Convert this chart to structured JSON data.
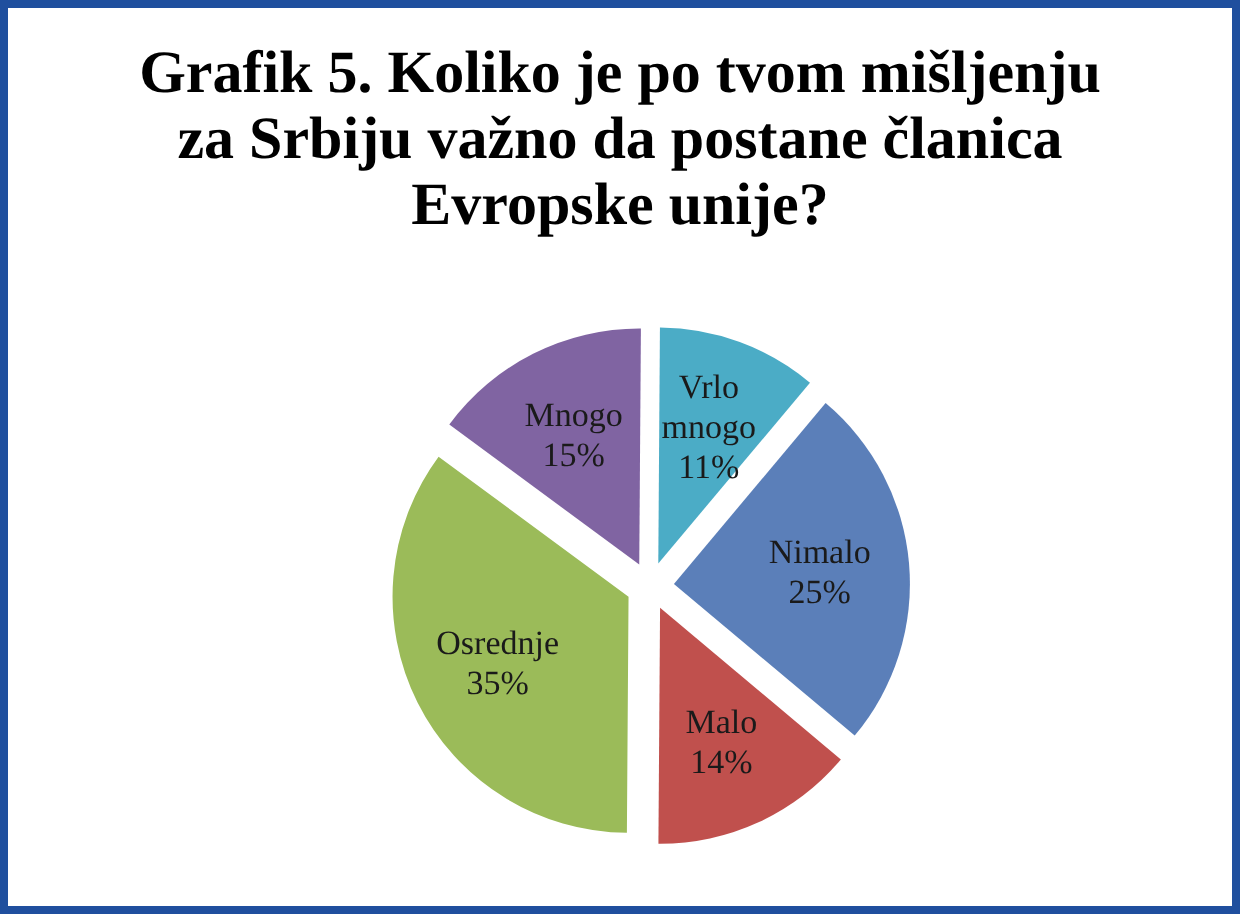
{
  "chart_data": {
    "type": "pie",
    "title": "Grafik 5. Koliko je po tvom mišljenju za Srbiju važno da postane članica Evropske unije?",
    "categories": [
      "Nimalo",
      "Malo",
      "Osrednje",
      "Mnogo",
      "Vrlo mnogo"
    ],
    "values": [
      25,
      14,
      35,
      15,
      11
    ],
    "value_labels": [
      "25%",
      "14%",
      "35%",
      "15%",
      "11%"
    ],
    "colors": [
      "#5b7fb9",
      "#c0504d",
      "#9bbb59",
      "#8064a2",
      "#4bacc6"
    ]
  }
}
